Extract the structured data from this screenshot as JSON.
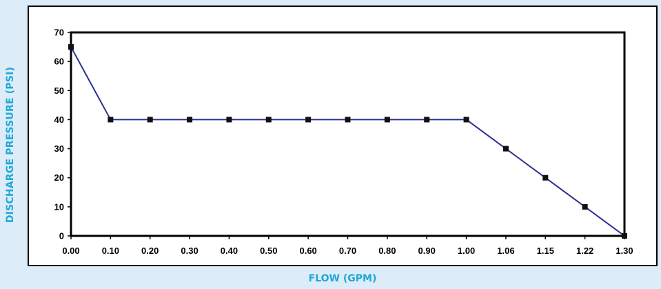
{
  "chart_data": {
    "type": "line",
    "title": "",
    "xlabel": "FLOW (GPM)",
    "ylabel": "DISCHARGE PRESSURE (PSI)",
    "categories": [
      "0.00",
      "0.10",
      "0.20",
      "0.30",
      "0.40",
      "0.50",
      "0.60",
      "0.70",
      "0.80",
      "0.90",
      "1.00",
      "1.06",
      "1.15",
      "1.22",
      "1.30"
    ],
    "series": [
      {
        "values": [
          65,
          40,
          40,
          40,
          40,
          40,
          40,
          40,
          40,
          40,
          40,
          30,
          20,
          10,
          0
        ]
      }
    ],
    "ylim": [
      0,
      70
    ],
    "yticks": [
      "0",
      "10",
      "20",
      "30",
      "40",
      "50",
      "60",
      "70"
    ],
    "grid": false,
    "legend": "none",
    "colors": {
      "line": "#2b2f8f",
      "marker": "#111111",
      "label": "#1fa8d6",
      "background": "#dcecf8"
    }
  }
}
